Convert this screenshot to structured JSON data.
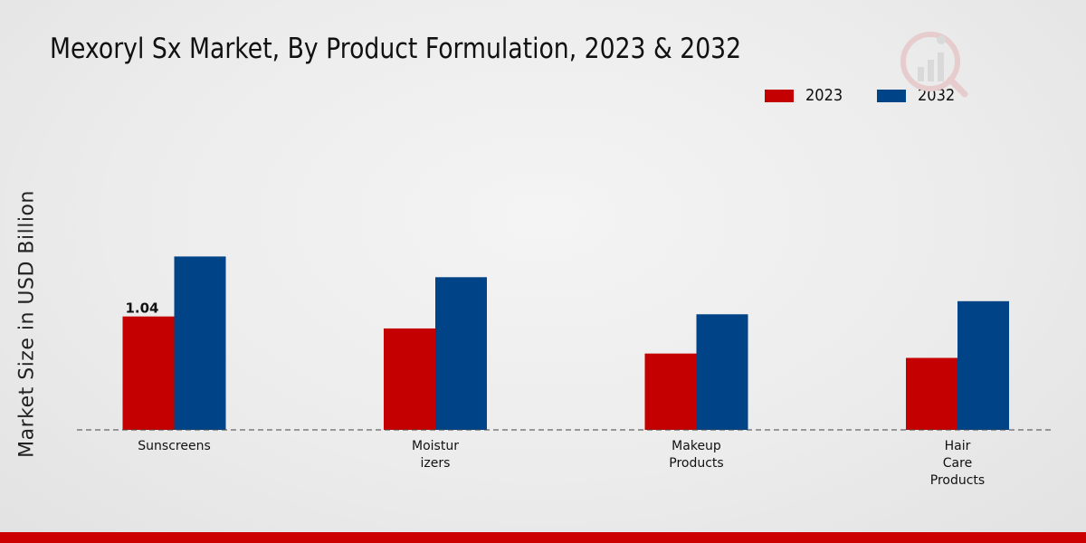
{
  "chart_data": {
    "type": "bar",
    "title": "Mexoryl Sx Market, By Product Formulation, 2023 & 2032",
    "ylabel": "Market Size in USD Billion",
    "xlabel": "",
    "categories": [
      [
        "Sunscreens"
      ],
      [
        "Moistur",
        "izers"
      ],
      [
        "Makeup",
        "Products"
      ],
      [
        "Hair",
        "Care",
        "Products"
      ]
    ],
    "series": [
      {
        "name": "2023",
        "color": "#c40000",
        "values": [
          1.04,
          0.93,
          0.7,
          0.66
        ]
      },
      {
        "name": "2032",
        "color": "#004387",
        "values": [
          1.59,
          1.4,
          1.06,
          1.18
        ]
      }
    ],
    "data_labels": [
      {
        "series": 0,
        "index": 0,
        "text": "1.04"
      }
    ],
    "ylim": [
      0,
      2.4
    ],
    "grid": false,
    "legend_position": "top-right"
  }
}
